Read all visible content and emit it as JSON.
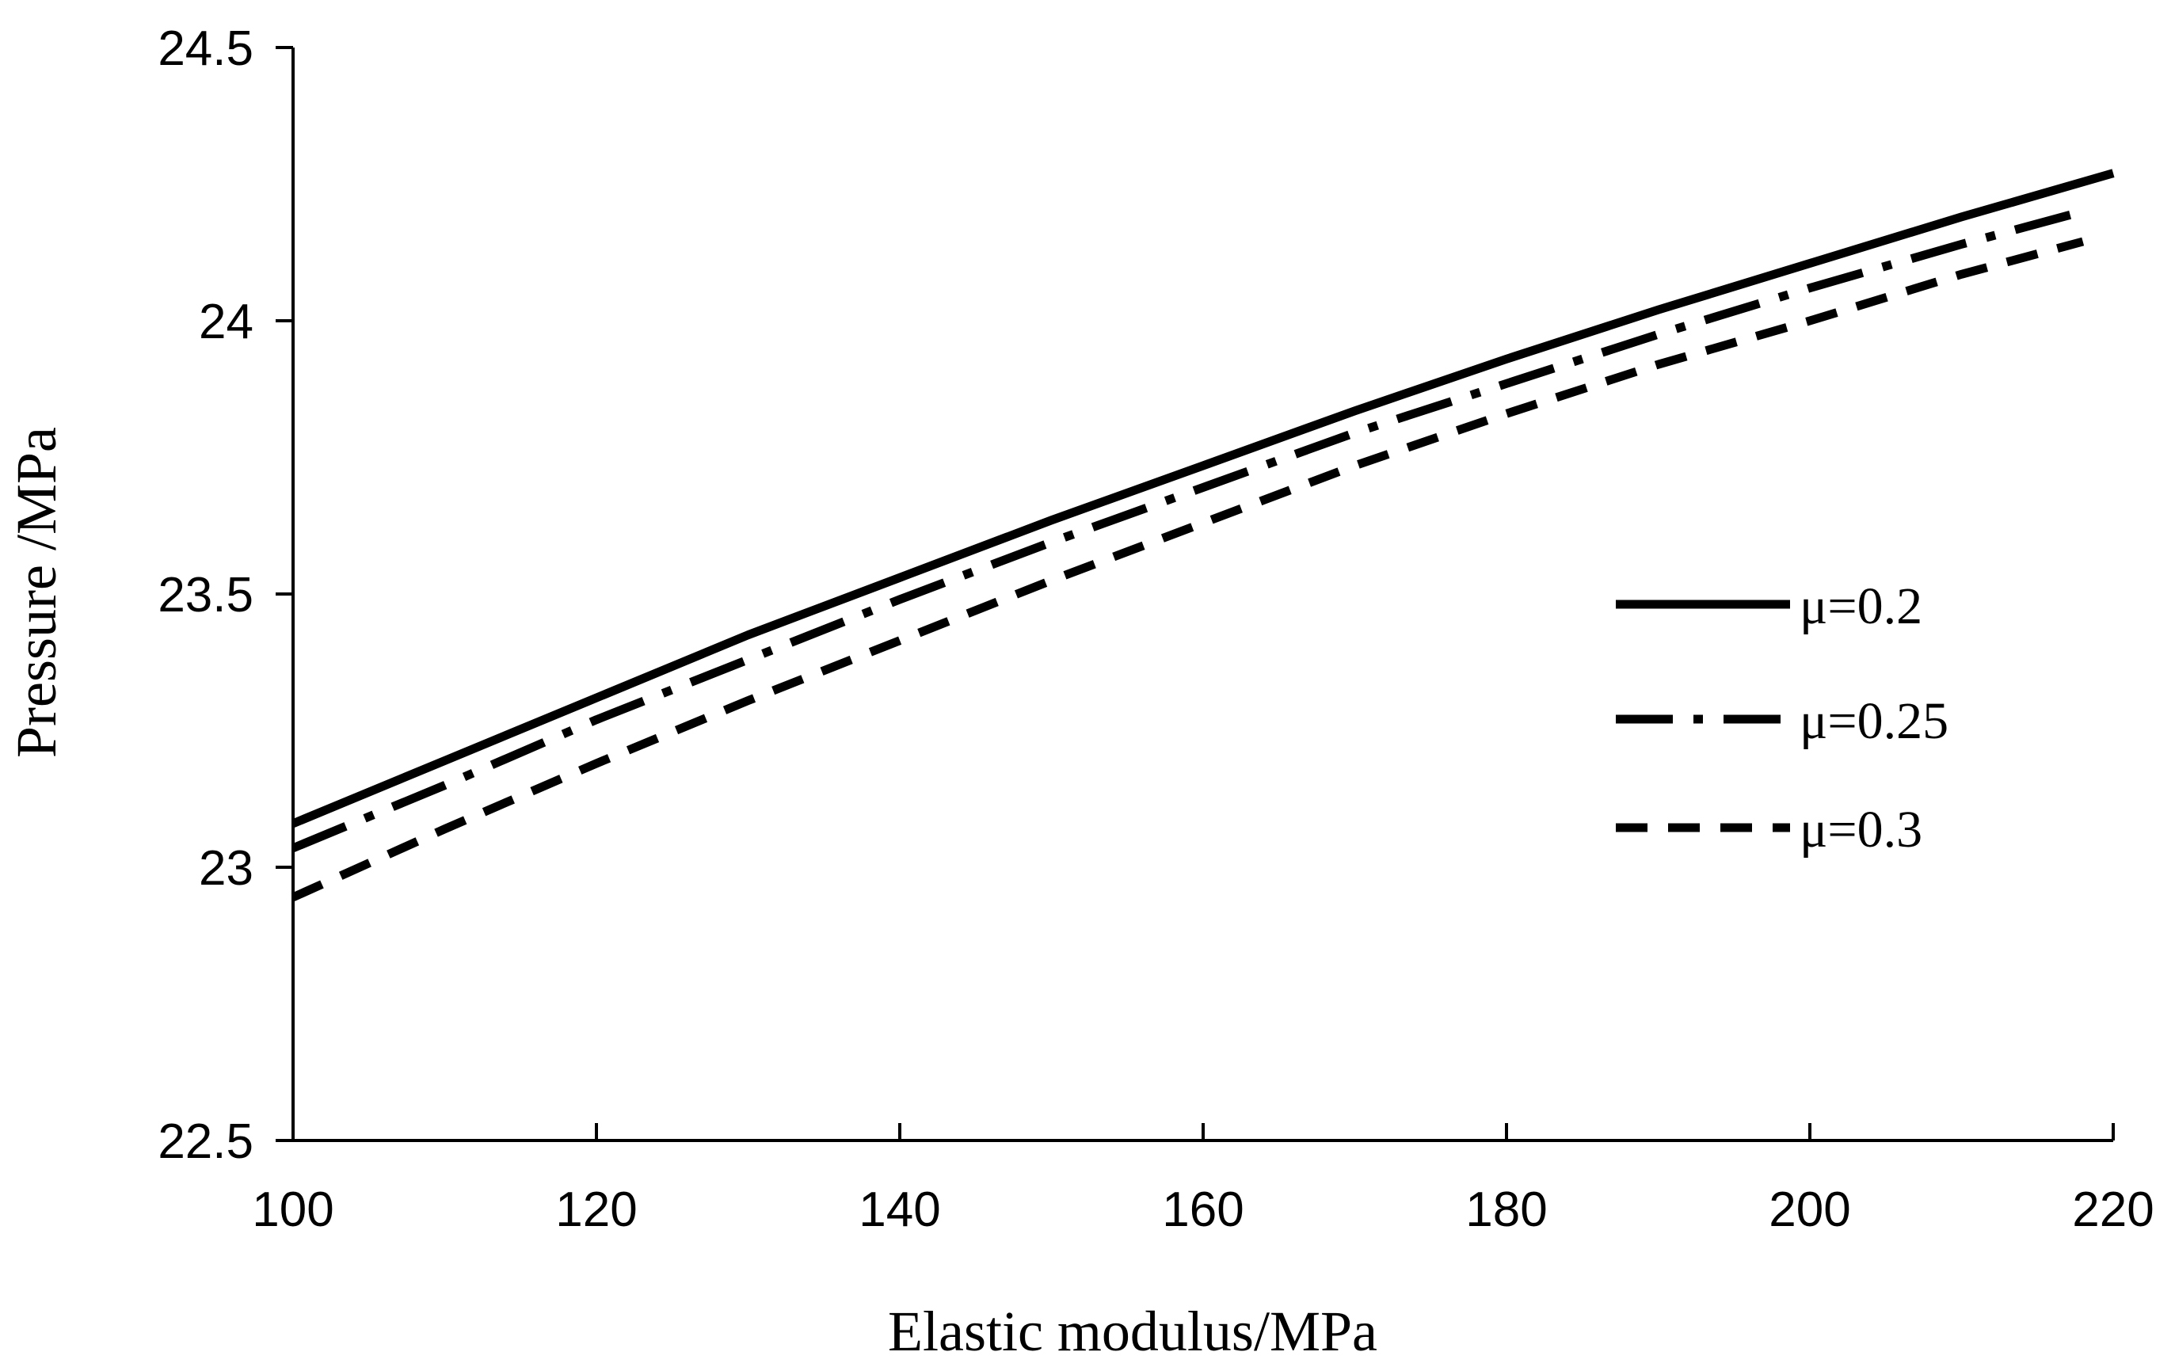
{
  "chart_data": {
    "type": "line",
    "title": "",
    "xlabel": "Elastic modulus/MPa",
    "ylabel": "Pressure /MPa",
    "xlim": [
      100,
      220
    ],
    "ylim": [
      22.5,
      24.5
    ],
    "x_ticks": [
      100,
      120,
      140,
      160,
      180,
      200,
      220
    ],
    "y_ticks": [
      22.5,
      23,
      23.5,
      24,
      24.5
    ],
    "x_tick_labels": [
      "100",
      "120",
      "140",
      "160",
      "180",
      "200",
      "220"
    ],
    "y_tick_labels": [
      "22.5",
      "23",
      "23.5",
      "24",
      "24.5"
    ],
    "grid": false,
    "legend_position": "right-middle",
    "series": [
      {
        "name": "μ=0.2",
        "style": "solid",
        "x": [
          100,
          110,
          120,
          130,
          140,
          150,
          160,
          170,
          180,
          190,
          200,
          210,
          220
        ],
        "y": [
          23.08,
          23.195,
          23.31,
          23.425,
          23.53,
          23.635,
          23.735,
          23.835,
          23.93,
          24.02,
          24.105,
          24.19,
          24.27
        ]
      },
      {
        "name": "μ=0.25",
        "style": "dash-dot",
        "x": [
          100,
          110,
          120,
          130,
          140,
          150,
          160,
          170,
          180,
          190,
          200,
          210,
          218
        ],
        "y": [
          23.035,
          23.15,
          23.27,
          23.38,
          23.49,
          23.595,
          23.695,
          23.795,
          23.885,
          23.975,
          24.06,
          24.14,
          24.2
        ]
      },
      {
        "name": "μ=0.3",
        "style": "dashed",
        "x": [
          100,
          110,
          120,
          130,
          140,
          150,
          160,
          170,
          180,
          190,
          200,
          210,
          218
        ],
        "y": [
          22.945,
          23.07,
          23.19,
          23.305,
          23.415,
          23.525,
          23.63,
          23.735,
          23.83,
          23.92,
          24.0,
          24.085,
          24.145
        ]
      }
    ]
  }
}
